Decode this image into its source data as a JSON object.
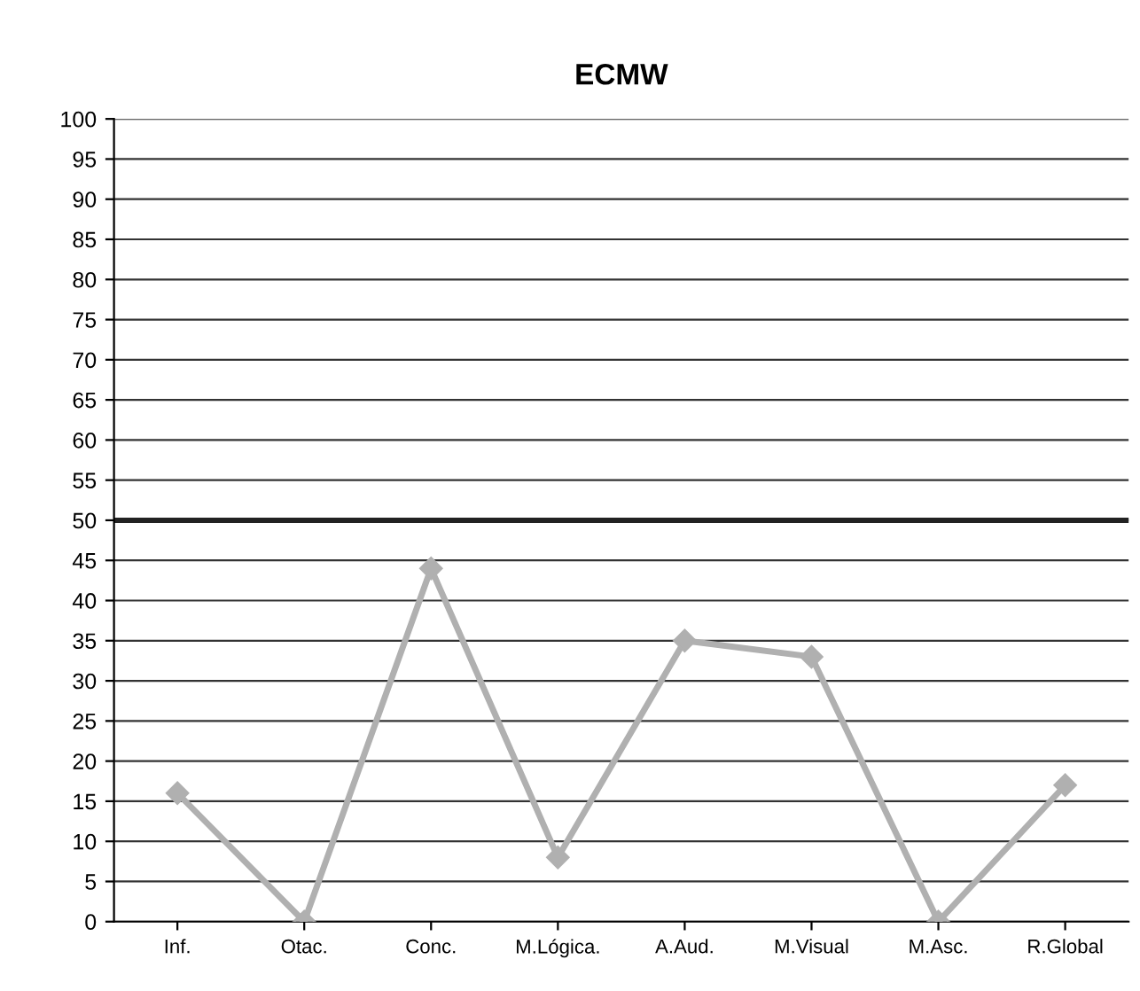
{
  "chart_data": {
    "type": "line",
    "title": "ECMW",
    "categories": [
      "Inf.",
      "Otac.",
      "Conc.",
      "M.Lógica.",
      "A.Aud.",
      "M.Visual",
      "M.Asc.",
      "R.Global"
    ],
    "series": [
      {
        "color": "#b0b0b0",
        "values": [
          16,
          0,
          44,
          8,
          35,
          33,
          0,
          17
        ]
      }
    ],
    "ylim": [
      0,
      100
    ],
    "yticks": [
      0,
      5,
      10,
      15,
      20,
      25,
      30,
      35,
      40,
      45,
      50,
      55,
      60,
      65,
      70,
      75,
      80,
      85,
      90,
      95,
      100
    ],
    "grid": "y",
    "marker": "diamond",
    "line_style": "solid",
    "ref_lines": [
      {
        "axis": "y",
        "value": 50,
        "color": "#222222"
      }
    ]
  }
}
